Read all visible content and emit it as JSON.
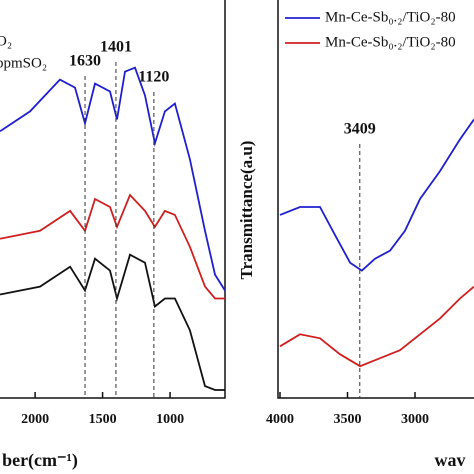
{
  "chart_data": [
    {
      "type": "line",
      "xlabel": "ber(cm⁻¹)",
      "xlim": [
        2260,
        593
      ],
      "ylim": [
        0,
        100
      ],
      "xticks": [
        2000,
        1500,
        1000
      ],
      "yticks": [],
      "series": [
        {
          "name": "O₂",
          "color": "#1f1fd0",
          "x": [
            2260,
            2038,
            1816,
            1704,
            1630,
            1556,
            1445,
            1393,
            1334,
            1260,
            1186,
            1112,
            1038,
            964,
            853,
            741,
            667,
            593
          ],
          "values": [
            67,
            72,
            80,
            78,
            69,
            79,
            77,
            70,
            82,
            83,
            76,
            64,
            72,
            74,
            60,
            42,
            31,
            27
          ]
        },
        {
          "name": "ppmSO₂",
          "color": "#d01f1f",
          "x": [
            2260,
            1964,
            1741,
            1630,
            1556,
            1445,
            1393,
            1297,
            1186,
            1112,
            1038,
            964,
            853,
            741,
            667,
            593
          ],
          "values": [
            40,
            42,
            47,
            42,
            50,
            48,
            43,
            51,
            47,
            43,
            47,
            46,
            38,
            28,
            25,
            25
          ]
        },
        {
          "color": "#111111",
          "x": [
            2260,
            1964,
            1741,
            1630,
            1556,
            1445,
            1393,
            1297,
            1186,
            1112,
            1038,
            964,
            853,
            741,
            667,
            593
          ],
          "values": [
            26,
            28,
            33,
            27,
            35,
            32,
            25,
            36,
            34,
            23,
            25,
            25,
            17,
            3,
            2,
            2
          ]
        }
      ],
      "annotations": [
        {
          "text": "1630",
          "x": 1630
        },
        {
          "text": "1401",
          "x": 1401
        },
        {
          "text": "1120",
          "x": 1120
        }
      ]
    },
    {
      "type": "line",
      "xlabel": "wav",
      "ylabel": "Transmittance(a.u)",
      "xlim": [
        4000,
        2563
      ],
      "ylim": [
        0,
        100
      ],
      "xticks": [
        4000,
        3500,
        3000
      ],
      "yticks": [],
      "series": [
        {
          "name": "Mn-Ce-Sb₀.₂/TiO₂-80",
          "color": "#1f1fd0",
          "x": [
            4000,
            3852,
            3704,
            3593,
            3481,
            3393,
            3296,
            3185,
            3074,
            2963,
            2815,
            2667,
            2563
          ],
          "values": [
            46,
            48,
            48,
            41,
            34,
            32,
            35,
            37,
            42,
            50,
            57,
            65,
            70
          ]
        },
        {
          "name": "Mn-Ce-Sb₀.₂/TiO₂-80",
          "color": "#d01f1f",
          "x": [
            4000,
            3852,
            3704,
            3556,
            3407,
            3259,
            3111,
            2963,
            2815,
            2667,
            2563
          ],
          "values": [
            13,
            16,
            15,
            11,
            8,
            10,
            12,
            16,
            20,
            25,
            28
          ]
        }
      ],
      "annotations": [
        {
          "text": "3409",
          "x": 3409
        }
      ]
    }
  ]
}
